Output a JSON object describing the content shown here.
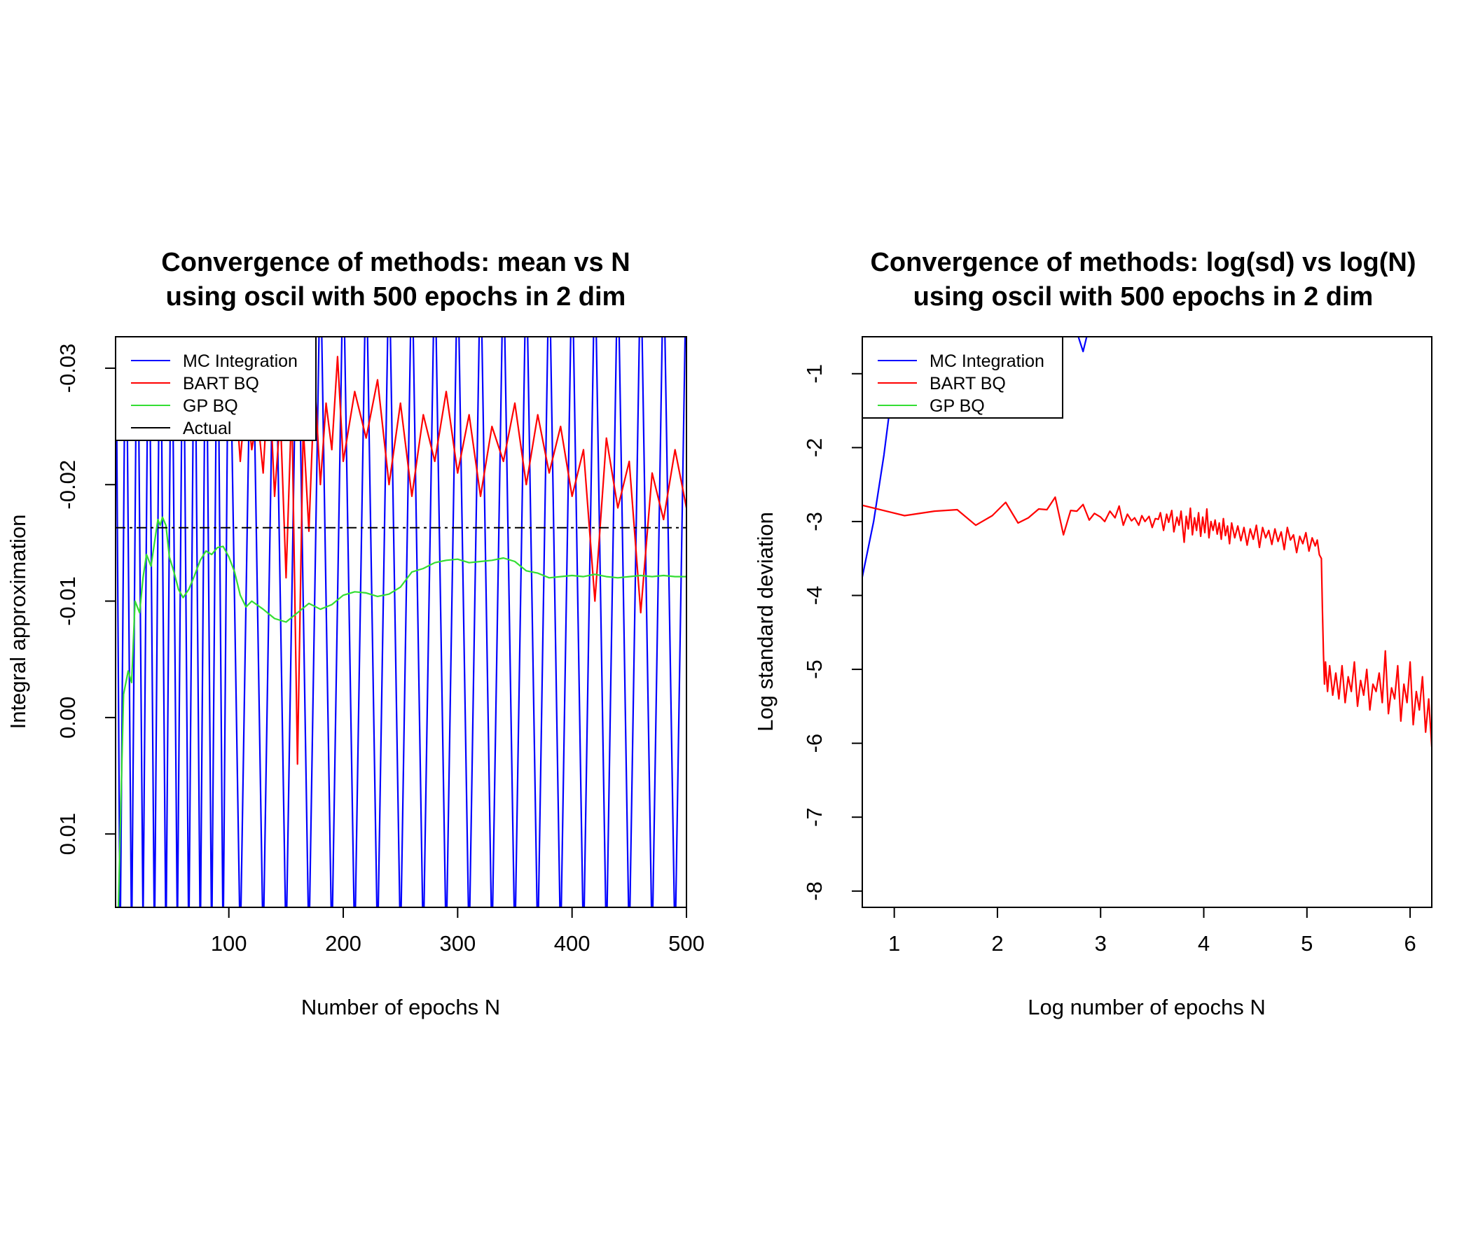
{
  "colors": {
    "mc": "#0000ff",
    "bart": "#ff0000",
    "gp": "#33dd33",
    "actual": "#000000"
  },
  "chart_data": [
    {
      "type": "line",
      "title_line1": "Convergence of methods: mean vs N",
      "title_line2": "using oscil with 500 epochs in 2 dim",
      "xlabel": "Number of epochs N",
      "ylabel": "Integral approximation",
      "xlim": [
        1,
        500
      ],
      "ylim": [
        0.0163,
        -0.0327
      ],
      "y_reversed": true,
      "grid": false,
      "legend_position": "top-left",
      "xticks": [
        100,
        200,
        300,
        400,
        500
      ],
      "xtick_labels": [
        "100",
        "200",
        "300",
        "400",
        "500"
      ],
      "yticks": [
        0.01,
        0.0,
        -0.01,
        -0.02,
        -0.03
      ],
      "ytick_labels": [
        "0.01",
        "0.00",
        "-0.01",
        "-0.02",
        "-0.03"
      ],
      "legend": [
        {
          "label": "MC Integration",
          "color": "#0000ff",
          "dash": "none"
        },
        {
          "label": "BART BQ",
          "color": "#ff0000",
          "dash": "none"
        },
        {
          "label": "GP BQ",
          "color": "#33dd33",
          "dash": "none"
        },
        {
          "label": "Actual",
          "color": "#000000",
          "dash": "none"
        }
      ],
      "actual_value": -0.0163,
      "series": [
        {
          "name": "MC Integration",
          "color": "#0000ff",
          "description": "Monte Carlo running mean, oscillating beyond both plot limits for all N",
          "x": [
            1,
            5,
            10,
            15,
            20,
            25,
            30,
            35,
            40,
            45,
            50,
            55,
            60,
            65,
            70,
            75,
            80,
            85,
            90,
            95,
            100,
            110,
            120,
            130,
            140,
            150,
            160,
            170,
            180,
            190,
            200,
            210,
            220,
            230,
            240,
            250,
            260,
            270,
            280,
            290,
            300,
            310,
            320,
            330,
            340,
            350,
            360,
            370,
            380,
            390,
            400,
            410,
            420,
            430,
            440,
            450,
            460,
            470,
            480,
            490,
            500
          ],
          "y": [
            -0.04,
            0.02,
            -0.04,
            0.02,
            -0.04,
            0.018,
            -0.04,
            0.02,
            -0.04,
            0.02,
            -0.04,
            0.019,
            -0.04,
            0.02,
            -0.04,
            0.02,
            -0.04,
            0.02,
            -0.04,
            0.02,
            -0.04,
            0.02,
            -0.04,
            0.02,
            -0.04,
            0.02,
            -0.04,
            0.02,
            -0.04,
            0.02,
            -0.04,
            0.02,
            -0.04,
            0.02,
            -0.04,
            0.02,
            -0.04,
            0.02,
            -0.04,
            0.02,
            -0.04,
            0.02,
            -0.04,
            0.02,
            -0.04,
            0.02,
            -0.04,
            0.02,
            -0.04,
            0.02,
            -0.04,
            0.02,
            -0.04,
            0.02,
            -0.04,
            0.02,
            -0.04,
            0.02,
            -0.04,
            0.02,
            -0.04
          ]
        },
        {
          "name": "BART BQ",
          "color": "#ff0000",
          "description": "BART Bayesian quadrature estimate, noisy around -0.02 to -0.03 after N~100",
          "x": [
            100,
            105,
            110,
            115,
            120,
            125,
            130,
            135,
            140,
            145,
            150,
            155,
            160,
            165,
            170,
            175,
            180,
            185,
            190,
            195,
            200,
            210,
            220,
            230,
            240,
            250,
            260,
            270,
            280,
            290,
            300,
            310,
            320,
            330,
            340,
            350,
            360,
            370,
            380,
            390,
            400,
            410,
            420,
            430,
            440,
            450,
            460,
            470,
            480,
            490,
            500
          ],
          "y": [
            -0.024,
            -0.029,
            -0.022,
            -0.028,
            -0.023,
            -0.026,
            -0.021,
            -0.03,
            -0.019,
            -0.026,
            -0.012,
            -0.027,
            0.004,
            -0.025,
            -0.016,
            -0.029,
            -0.02,
            -0.027,
            -0.023,
            -0.031,
            -0.022,
            -0.028,
            -0.024,
            -0.029,
            -0.02,
            -0.027,
            -0.019,
            -0.026,
            -0.022,
            -0.028,
            -0.021,
            -0.026,
            -0.019,
            -0.025,
            -0.022,
            -0.027,
            -0.02,
            -0.026,
            -0.021,
            -0.025,
            -0.019,
            -0.023,
            -0.01,
            -0.024,
            -0.018,
            -0.022,
            -0.009,
            -0.021,
            -0.017,
            -0.023,
            -0.018
          ]
        },
        {
          "name": "GP BQ",
          "color": "#33dd33",
          "description": "GP Bayesian quadrature estimate, smooth, settling near -0.012",
          "x": [
            1,
            3,
            5,
            8,
            12,
            15,
            18,
            22,
            25,
            28,
            32,
            35,
            38,
            40,
            42,
            45,
            48,
            52,
            56,
            60,
            65,
            70,
            75,
            80,
            85,
            90,
            95,
            100,
            105,
            110,
            115,
            120,
            130,
            140,
            150,
            160,
            170,
            180,
            190,
            200,
            210,
            220,
            230,
            240,
            250,
            260,
            270,
            280,
            290,
            300,
            310,
            320,
            330,
            340,
            350,
            360,
            370,
            380,
            390,
            400,
            410,
            420,
            430,
            440,
            450,
            460,
            470,
            480,
            490,
            500
          ],
          "y": [
            0.02,
            0.018,
            0.01,
            -0.002,
            -0.004,
            -0.003,
            -0.01,
            -0.009,
            -0.012,
            -0.014,
            -0.013,
            -0.015,
            -0.017,
            -0.0165,
            -0.0172,
            -0.0165,
            -0.0138,
            -0.0125,
            -0.011,
            -0.0103,
            -0.011,
            -0.0122,
            -0.0135,
            -0.0143,
            -0.014,
            -0.0146,
            -0.0147,
            -0.0138,
            -0.0125,
            -0.0105,
            -0.0095,
            -0.01,
            -0.0093,
            -0.0085,
            -0.0082,
            -0.009,
            -0.0098,
            -0.0093,
            -0.0097,
            -0.0105,
            -0.0108,
            -0.0107,
            -0.0104,
            -0.0106,
            -0.0112,
            -0.0125,
            -0.0128,
            -0.0133,
            -0.0135,
            -0.0136,
            -0.0133,
            -0.0134,
            -0.0135,
            -0.0137,
            -0.0134,
            -0.0126,
            -0.0124,
            -0.012,
            -0.0121,
            -0.0122,
            -0.0121,
            -0.0123,
            -0.0121,
            -0.012,
            -0.0121,
            -0.0122,
            -0.0121,
            -0.0122,
            -0.0121,
            -0.0121
          ]
        }
      ]
    },
    {
      "type": "line",
      "title_line1": "Convergence of methods: log(sd) vs log(N)",
      "title_line2": "using oscil with 500 epochs in 2 dim",
      "xlabel": "Log number of epochs N",
      "ylabel": "Log standard deviation",
      "xlim": [
        0.69,
        6.21
      ],
      "ylim": [
        -8.22,
        -0.5
      ],
      "grid": false,
      "legend_position": "top-left",
      "xticks": [
        1,
        2,
        3,
        4,
        5,
        6
      ],
      "xtick_labels": [
        "1",
        "2",
        "3",
        "4",
        "5",
        "6"
      ],
      "yticks": [
        -8,
        -7,
        -6,
        -5,
        -4,
        -3,
        -2,
        -1
      ],
      "ytick_labels": [
        "-8",
        "-7",
        "-6",
        "-5",
        "-4",
        "-3",
        "-2",
        "-1"
      ],
      "legend": [
        {
          "label": "MC Integration",
          "color": "#0000ff"
        },
        {
          "label": "BART BQ",
          "color": "#ff0000"
        },
        {
          "label": "GP BQ",
          "color": "#33dd33"
        }
      ],
      "series": [
        {
          "name": "MC Integration",
          "color": "#0000ff",
          "x": [
            0.69,
            0.8,
            0.9,
            1.0,
            2.0,
            2.75,
            2.83,
            2.9
          ],
          "y": [
            -3.75,
            -3.0,
            -2.1,
            -1.0,
            0.5,
            -0.35,
            -0.7,
            -0.3
          ]
        },
        {
          "name": "BART BQ",
          "color": "#ff0000",
          "x": [
            0.69,
            1.1,
            1.39,
            1.61,
            1.79,
            1.95,
            2.08,
            2.2,
            2.3,
            2.4,
            2.48,
            2.56,
            2.64,
            2.71,
            2.77,
            2.83,
            2.89,
            2.94,
            3.0,
            3.04,
            3.09,
            3.14,
            3.18,
            3.22,
            3.26,
            3.3,
            3.33,
            3.37,
            3.4,
            3.43,
            3.47,
            3.5,
            3.53,
            3.56,
            3.58,
            3.61,
            3.64,
            3.66,
            3.69,
            3.71,
            3.74,
            3.76,
            3.78,
            3.81,
            3.83,
            3.85,
            3.87,
            3.89,
            3.91,
            3.93,
            3.95,
            3.97,
            3.99,
            4.01,
            4.03,
            4.05,
            4.07,
            4.09,
            4.11,
            4.13,
            4.15,
            4.17,
            4.19,
            4.21,
            4.23,
            4.25,
            4.27,
            4.3,
            4.33,
            4.36,
            4.39,
            4.42,
            4.45,
            4.48,
            4.51,
            4.54,
            4.57,
            4.6,
            4.63,
            4.66,
            4.69,
            4.72,
            4.75,
            4.78,
            4.81,
            4.84,
            4.87,
            4.9,
            4.93,
            4.96,
            4.99,
            5.02,
            5.05,
            5.08,
            5.1,
            5.12,
            5.14,
            5.15,
            5.16,
            5.17,
            5.18,
            5.2,
            5.22,
            5.25,
            5.28,
            5.31,
            5.34,
            5.37,
            5.4,
            5.43,
            5.46,
            5.49,
            5.52,
            5.55,
            5.58,
            5.61,
            5.64,
            5.67,
            5.7,
            5.73,
            5.76,
            5.79,
            5.82,
            5.85,
            5.88,
            5.91,
            5.94,
            5.97,
            6.0,
            6.03,
            6.06,
            6.09,
            6.12,
            6.15,
            6.18,
            6.21
          ],
          "y": [
            -2.78,
            -2.92,
            -2.86,
            -2.84,
            -3.05,
            -2.92,
            -2.74,
            -3.02,
            -2.95,
            -2.83,
            -2.84,
            -2.67,
            -3.18,
            -2.85,
            -2.86,
            -2.77,
            -2.98,
            -2.89,
            -2.94,
            -3.0,
            -2.86,
            -2.95,
            -2.79,
            -3.05,
            -2.9,
            -2.99,
            -2.95,
            -3.05,
            -2.92,
            -3.0,
            -2.93,
            -3.08,
            -2.96,
            -2.97,
            -2.88,
            -3.12,
            -2.9,
            -3.01,
            -2.85,
            -3.14,
            -2.94,
            -3.05,
            -2.86,
            -3.28,
            -2.93,
            -3.1,
            -2.82,
            -3.18,
            -2.95,
            -3.12,
            -2.88,
            -3.2,
            -2.94,
            -3.15,
            -2.83,
            -3.22,
            -3.0,
            -3.12,
            -2.98,
            -3.17,
            -3.02,
            -3.24,
            -2.96,
            -3.19,
            -3.06,
            -3.3,
            -3.02,
            -3.22,
            -3.06,
            -3.26,
            -3.08,
            -3.32,
            -3.1,
            -3.24,
            -3.05,
            -3.35,
            -3.08,
            -3.22,
            -3.12,
            -3.31,
            -3.1,
            -3.27,
            -3.14,
            -3.38,
            -3.08,
            -3.25,
            -3.18,
            -3.42,
            -3.2,
            -3.3,
            -3.15,
            -3.4,
            -3.22,
            -3.33,
            -3.25,
            -3.45,
            -3.5,
            -4.2,
            -4.8,
            -5.2,
            -4.9,
            -5.3,
            -4.95,
            -5.35,
            -5.05,
            -5.4,
            -4.95,
            -5.45,
            -5.1,
            -5.3,
            -4.9,
            -5.5,
            -5.15,
            -5.35,
            -5.0,
            -5.55,
            -5.2,
            -5.3,
            -5.05,
            -5.45,
            -4.75,
            -5.6,
            -5.25,
            -5.4,
            -4.95,
            -5.7,
            -5.2,
            -5.45,
            -4.9,
            -5.75,
            -5.3,
            -5.55,
            -5.1,
            -5.85,
            -5.4,
            -6.05
          ]
        },
        {
          "name": "GP BQ",
          "color": "#33dd33",
          "x": [],
          "y": []
        }
      ]
    }
  ]
}
